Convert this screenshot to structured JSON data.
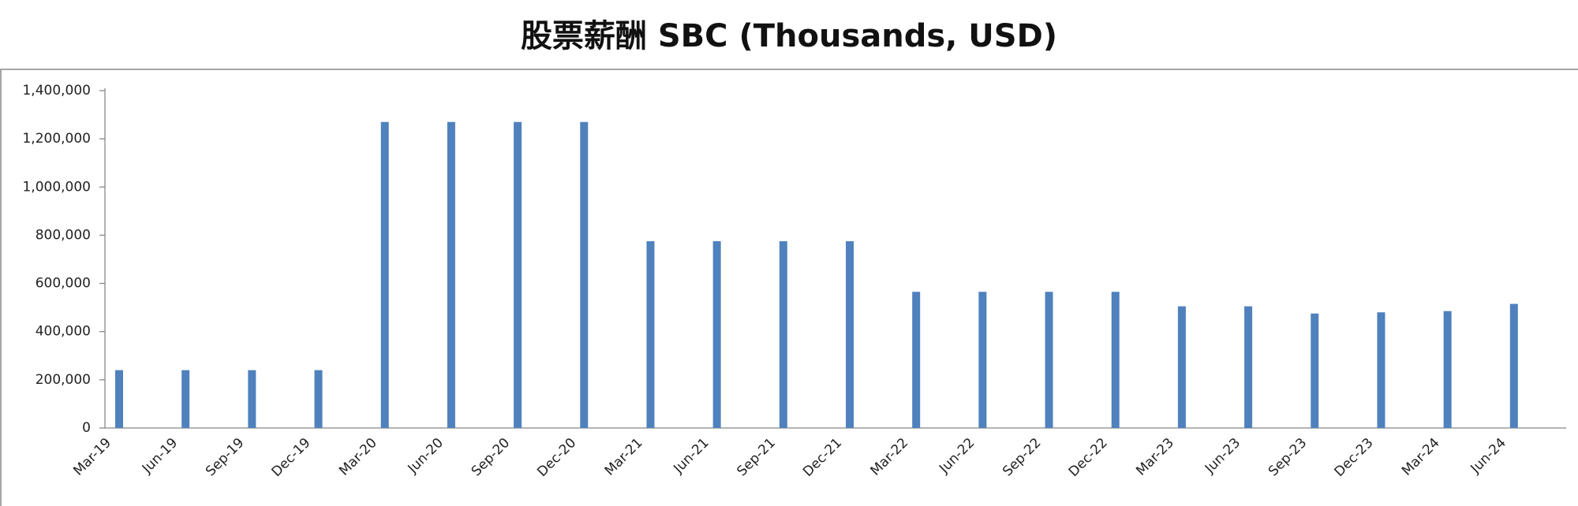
{
  "chart_data": {
    "type": "bar",
    "title": "股票薪酬 SBC (Thousands, USD)",
    "categories": [
      "Mar-19",
      "Jun-19",
      "Sep-19",
      "Dec-19",
      "Mar-20",
      "Jun-20",
      "Sep-20",
      "Dec-20",
      "Mar-21",
      "Jun-21",
      "Sep-21",
      "Dec-21",
      "Mar-22",
      "Jun-22",
      "Sep-22",
      "Dec-22",
      "Mar-23",
      "Jun-23",
      "Sep-23",
      "Dec-23",
      "Mar-24",
      "Jun-24"
    ],
    "values": [
      240000,
      240000,
      240000,
      240000,
      1270000,
      1270000,
      1270000,
      1270000,
      775000,
      775000,
      775000,
      775000,
      565000,
      565000,
      565000,
      565000,
      505000,
      505000,
      475000,
      480000,
      485000,
      515000
    ],
    "color": "#4f81bd",
    "ylim": [
      0,
      1400000
    ],
    "yticks": [
      0,
      {
        "value": 200000,
        "label": "200,000"
      },
      {
        "value": 400000,
        "label": "400,000"
      },
      {
        "value": 600000,
        "label": "600,000"
      },
      {
        "value": 800000,
        "label": "800,000"
      },
      {
        "value": 1000000,
        "label": "1,000,000"
      },
      {
        "value": 1200000,
        "label": "1,200,000"
      },
      {
        "value": 1400000,
        "label": "1,400,000"
      }
    ],
    "grid": false
  }
}
